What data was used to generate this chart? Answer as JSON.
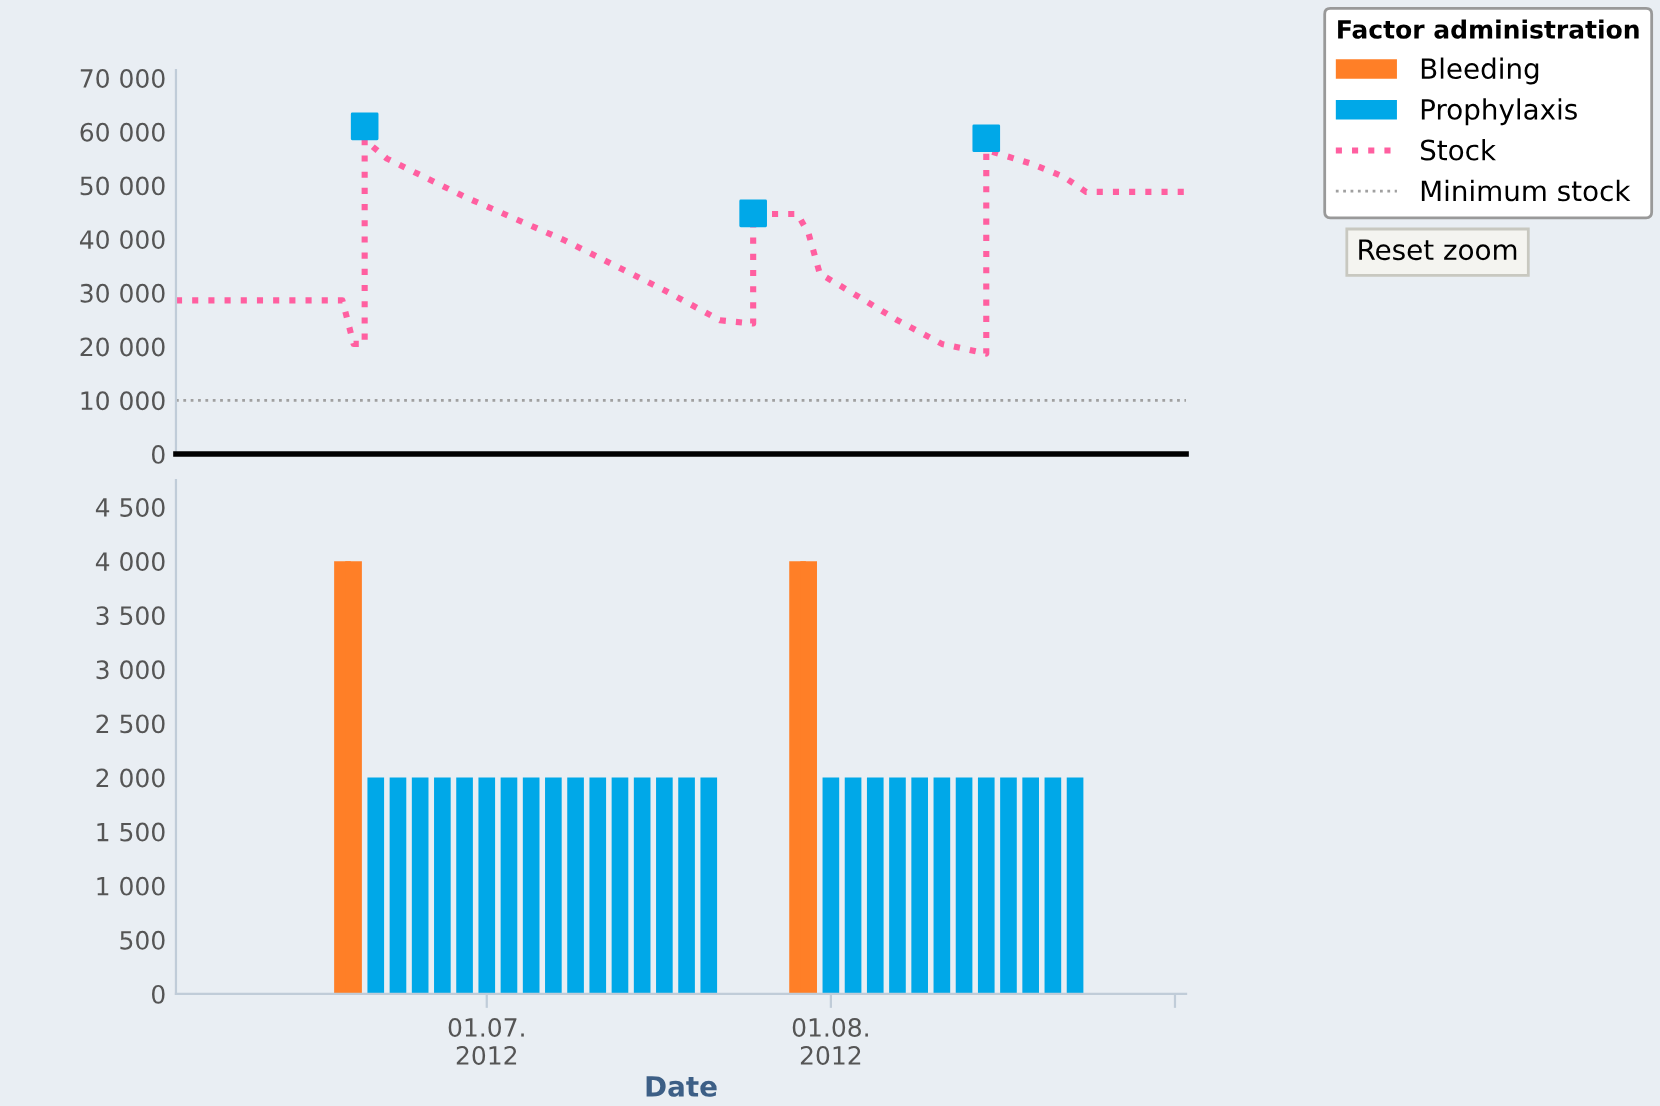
{
  "chart_data": [
    {
      "type": "line",
      "legend_title": "Factor administration",
      "legend": "top right",
      "tick_labels": "y",
      "marker": "none",
      "line_style": "dotted",
      "xlim": [
        "2012-06-03",
        "2012-09-02"
      ],
      "ylim": [
        0,
        71500
      ],
      "yticks": [
        {
          "value": 0,
          "label": "0"
        },
        {
          "value": 10000,
          "label": "10 000"
        },
        {
          "value": 20000,
          "label": "20 000"
        },
        {
          "value": 30000,
          "label": "30 000"
        },
        {
          "value": 40000,
          "label": "40 000"
        },
        {
          "value": 50000,
          "label": "50 000"
        },
        {
          "value": 60000,
          "label": "60 000"
        },
        {
          "value": 70000,
          "label": "70 000"
        }
      ],
      "series": [
        {
          "name": "Stock",
          "color": "#ff5fa0",
          "x": [
            "2012-06-03",
            "2012-06-18",
            "2012-06-19",
            "2012-06-20",
            "2012-06-20",
            "2012-06-22",
            "2012-06-29",
            "2012-07-08",
            "2012-07-17",
            "2012-07-22",
            "2012-07-25",
            "2012-07-25",
            "2012-07-29",
            "2012-07-30",
            "2012-07-31",
            "2012-08-03",
            "2012-08-07",
            "2012-08-11",
            "2012-08-15",
            "2012-08-15",
            "2012-08-19",
            "2012-08-22",
            "2012-08-24",
            "2012-09-02"
          ],
          "values": [
            28600,
            28600,
            20500,
            20500,
            58500,
            55000,
            47900,
            39800,
            30500,
            24900,
            24300,
            44700,
            44700,
            41000,
            33600,
            29900,
            24900,
            20500,
            18700,
            56600,
            54100,
            51600,
            48800,
            48800
          ]
        },
        {
          "type": "scatter",
          "marker": "square",
          "color": "#00a8e8",
          "x": [
            "2012-06-20",
            "2012-07-25",
            "2012-08-15"
          ],
          "values": [
            61000,
            44800,
            58800
          ]
        }
      ],
      "ref_lines": [
        {
          "axis": "y",
          "value": 10000,
          "label": "Minimum stock",
          "color": "#a0a0a0",
          "line_style": "dotted"
        }
      ],
      "annotations": [
        "Reset zoom"
      ]
    },
    {
      "type": "bar",
      "xlabel": "Date",
      "legend": "top right",
      "xlim": [
        "2012-06-03",
        "2012-09-02"
      ],
      "ylim": [
        0,
        4750
      ],
      "xticks": [
        {
          "value": "2012-07-01",
          "label": "01.07.\n2012"
        },
        {
          "value": "2012-08-01",
          "label": "01.08.\n2012"
        },
        {
          "value": "2012-09-01",
          "label": null
        }
      ],
      "yticks": [
        {
          "value": 0,
          "label": "0"
        },
        {
          "value": 500,
          "label": "500"
        },
        {
          "value": 1000,
          "label": "1 000"
        },
        {
          "value": 1500,
          "label": "1 500"
        },
        {
          "value": 2000,
          "label": "2 000"
        },
        {
          "value": 2500,
          "label": "2 500"
        },
        {
          "value": 3000,
          "label": "3 000"
        },
        {
          "value": 3500,
          "label": "3 500"
        },
        {
          "value": 4000,
          "label": "4 000"
        },
        {
          "value": 4500,
          "label": "4 500"
        }
      ],
      "series": [
        {
          "name": "Bleeding",
          "color": "#ff7f27",
          "x": [
            "2012-06-18",
            "2012-06-19",
            "2012-07-29",
            "2012-07-30"
          ],
          "values": [
            4000,
            4000,
            4000,
            4000
          ]
        },
        {
          "name": "Prophylaxis",
          "color": "#00a8e8",
          "x": [
            "2012-06-21",
            "2012-06-23",
            "2012-06-25",
            "2012-06-27",
            "2012-06-29",
            "2012-07-01",
            "2012-07-03",
            "2012-07-05",
            "2012-07-07",
            "2012-07-09",
            "2012-07-11",
            "2012-07-13",
            "2012-07-15",
            "2012-07-17",
            "2012-07-19",
            "2012-07-21",
            "2012-08-01",
            "2012-08-03",
            "2012-08-05",
            "2012-08-07",
            "2012-08-09",
            "2012-08-11",
            "2012-08-13",
            "2012-08-15",
            "2012-08-17",
            "2012-08-19",
            "2012-08-21",
            "2012-08-23"
          ],
          "values": [
            2000,
            2000,
            2000,
            2000,
            2000,
            2000,
            2000,
            2000,
            2000,
            2000,
            2000,
            2000,
            2000,
            2000,
            2000,
            2000,
            2000,
            2000,
            2000,
            2000,
            2000,
            2000,
            2000,
            2000,
            2000,
            2000,
            2000,
            2000
          ]
        }
      ]
    }
  ]
}
